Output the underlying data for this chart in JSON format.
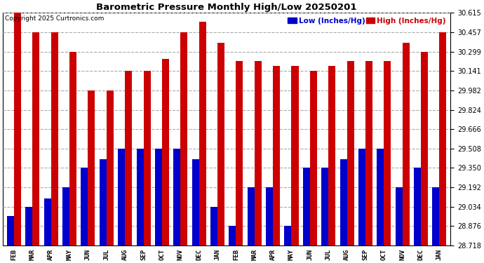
{
  "title": "Barometric Pressure Monthly High/Low 20250201",
  "copyright": "Copyright 2025 Curtronics.com",
  "legend_low": "Low (Inches/Hg)",
  "legend_high": "High (Inches/Hg)",
  "months": [
    "FEB",
    "MAR",
    "APR",
    "MAY",
    "JUN",
    "JUL",
    "AUG",
    "SEP",
    "OCT",
    "NOV",
    "DEC",
    "JAN",
    "FEB",
    "MAR",
    "APR",
    "MAY",
    "JUN",
    "JUL",
    "AUG",
    "SEP",
    "OCT",
    "NOV",
    "DEC",
    "JAN"
  ],
  "high_values": [
    30.615,
    30.457,
    30.457,
    30.299,
    29.982,
    29.982,
    30.141,
    30.141,
    30.24,
    30.457,
    30.54,
    30.37,
    30.22,
    30.22,
    30.18,
    30.18,
    30.141,
    30.18,
    30.22,
    30.22,
    30.22,
    30.37,
    30.299,
    30.457
  ],
  "low_values": [
    28.96,
    29.034,
    29.1,
    29.192,
    29.35,
    29.42,
    29.508,
    29.508,
    29.508,
    29.508,
    29.42,
    29.034,
    28.876,
    29.192,
    29.192,
    28.876,
    29.35,
    29.35,
    29.42,
    29.508,
    29.508,
    29.192,
    29.35,
    29.192
  ],
  "ymin": 28.718,
  "ymax": 30.615,
  "yticks": [
    28.718,
    28.876,
    29.034,
    29.192,
    29.35,
    29.508,
    29.666,
    29.824,
    29.982,
    30.141,
    30.299,
    30.457,
    30.615
  ],
  "low_color": "#0000cc",
  "high_color": "#cc0000",
  "bg_color": "#ffffff",
  "grid_color": "#aaaaaa"
}
